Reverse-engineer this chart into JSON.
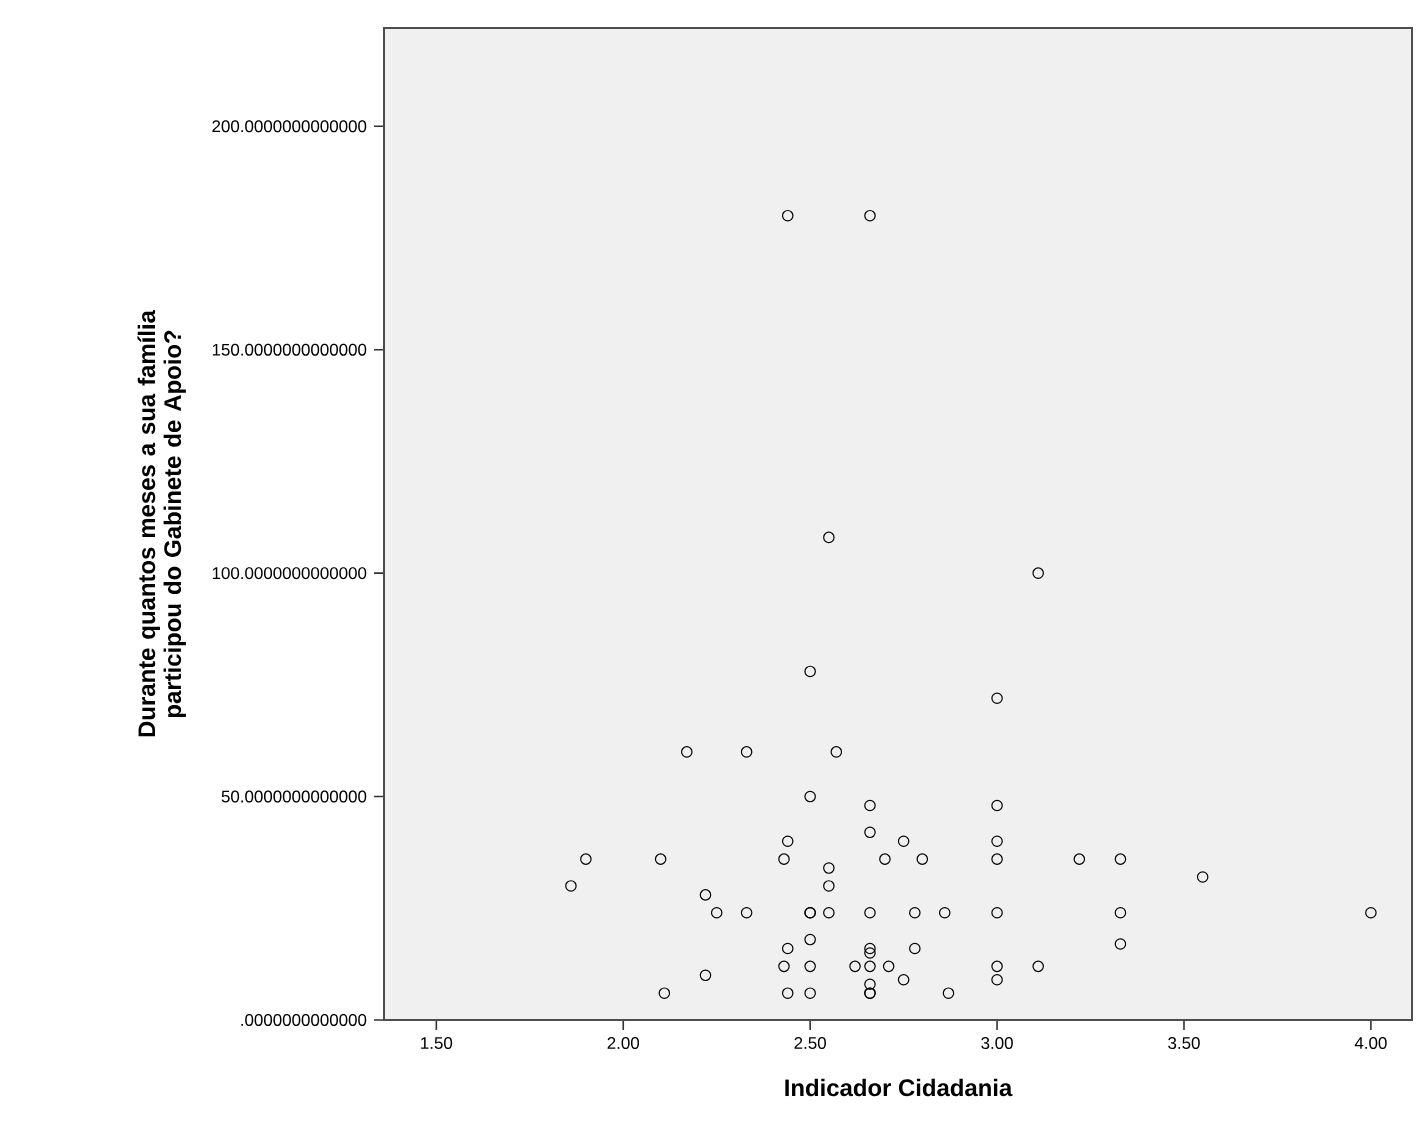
{
  "chart_data": {
    "type": "scatter",
    "xlabel": "Indicador Cidadania",
    "ylabel": "Durante quantos meses a sua família participou do Gabinete de Apoio?",
    "xlim": [
      1.36,
      4.11
    ],
    "ylim": [
      0,
      222
    ],
    "xticks": [
      {
        "value": 1.5,
        "label": "1.50"
      },
      {
        "value": 2.0,
        "label": "2.00"
      },
      {
        "value": 2.5,
        "label": "2.50"
      },
      {
        "value": 3.0,
        "label": "3.00"
      },
      {
        "value": 3.5,
        "label": "3.50"
      },
      {
        "value": 4.0,
        "label": "4.00"
      }
    ],
    "yticks": [
      {
        "value": 0,
        "label": ".0000000000000"
      },
      {
        "value": 50,
        "label": "50.0000000000000"
      },
      {
        "value": 100,
        "label": "100.0000000000000"
      },
      {
        "value": 150,
        "label": "150.0000000000000"
      },
      {
        "value": 200,
        "label": "200.0000000000000"
      }
    ],
    "marker": "circle",
    "grid": false,
    "series": [
      {
        "color": "#000000",
        "x": [
          2.44,
          2.66,
          2.55,
          3.11,
          2.5,
          3.0,
          2.17,
          2.33,
          2.57,
          2.5,
          2.66,
          3.0,
          2.66,
          2.44,
          2.75,
          3.0,
          1.9,
          2.1,
          2.43,
          2.7,
          2.8,
          3.0,
          3.22,
          3.33,
          2.55,
          3.55,
          1.86,
          2.55,
          2.22,
          2.25,
          2.33,
          2.5,
          2.5,
          2.55,
          2.66,
          2.78,
          2.86,
          3.0,
          3.33,
          4.0,
          2.5,
          3.33,
          2.44,
          2.78,
          2.66,
          2.66,
          2.43,
          2.5,
          2.62,
          2.66,
          2.71,
          3.0,
          3.11,
          2.22,
          2.75,
          3.0,
          2.66,
          2.11,
          2.44,
          2.5,
          2.66,
          2.66,
          2.87
        ],
        "values": [
          180,
          180,
          108,
          100,
          78,
          72,
          60,
          60,
          60,
          50,
          48,
          48,
          42,
          40,
          40,
          40,
          36,
          36,
          36,
          36,
          36,
          36,
          36,
          36,
          34,
          32,
          30,
          30,
          28,
          24,
          24,
          24,
          24,
          24,
          24,
          24,
          24,
          24,
          24,
          24,
          18,
          17,
          16,
          16,
          16,
          15,
          12,
          12,
          12,
          12,
          12,
          12,
          12,
          10,
          9,
          9,
          8,
          6,
          6,
          6,
          6,
          6,
          6
        ]
      }
    ]
  }
}
